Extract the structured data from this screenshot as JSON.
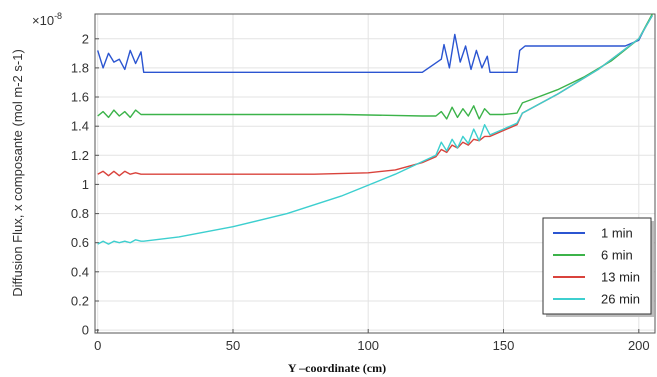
{
  "chart_data": {
    "type": "line",
    "title": "",
    "xlabel": "Y –coordinate (cm)",
    "ylabel": "Diffusion Flux, x composante (mol m-2 s-1)",
    "y_multiplier_label": "×10",
    "y_multiplier_exponent": "-8",
    "xlim": [
      -1,
      206
    ],
    "ylim": [
      -0.02,
      2.17
    ],
    "x_ticks": [
      0,
      50,
      100,
      150,
      200
    ],
    "y_ticks": [
      0,
      0.2,
      0.4,
      0.6,
      0.8,
      1,
      1.2,
      1.4,
      1.6,
      1.8,
      2
    ],
    "grid": true,
    "legend_position": "lower-right",
    "series": [
      {
        "name": "1 min",
        "color": "#2b55d1",
        "x": [
          0,
          2,
          4,
          6,
          8,
          10,
          12,
          14,
          16,
          17,
          30,
          60,
          90,
          120,
          127,
          128,
          130,
          132,
          134,
          136,
          138,
          140,
          142,
          144,
          145,
          150,
          155,
          156,
          158,
          170,
          185,
          195,
          200,
          203,
          205
        ],
        "values": [
          1.92,
          1.8,
          1.9,
          1.84,
          1.86,
          1.79,
          1.92,
          1.83,
          1.91,
          1.77,
          1.77,
          1.77,
          1.77,
          1.77,
          1.86,
          1.96,
          1.8,
          2.03,
          1.84,
          1.95,
          1.79,
          1.92,
          1.8,
          1.88,
          1.77,
          1.77,
          1.77,
          1.92,
          1.95,
          1.95,
          1.95,
          1.95,
          1.99,
          2.1,
          2.16
        ]
      },
      {
        "name": "6 min",
        "color": "#3cb34a",
        "x": [
          0,
          2,
          4,
          6,
          8,
          10,
          12,
          14,
          16,
          17,
          30,
          60,
          90,
          120,
          125,
          127,
          129,
          131,
          133,
          135,
          137,
          139,
          141,
          143,
          145,
          150,
          155,
          157,
          160,
          170,
          180,
          190,
          200,
          205
        ],
        "values": [
          1.47,
          1.5,
          1.46,
          1.51,
          1.47,
          1.5,
          1.46,
          1.51,
          1.48,
          1.48,
          1.48,
          1.48,
          1.48,
          1.47,
          1.47,
          1.5,
          1.45,
          1.53,
          1.46,
          1.52,
          1.47,
          1.54,
          1.45,
          1.52,
          1.48,
          1.48,
          1.49,
          1.56,
          1.58,
          1.65,
          1.74,
          1.85,
          2.0,
          2.17
        ]
      },
      {
        "name": "13 min",
        "color": "#d9433c",
        "x": [
          0,
          2,
          4,
          6,
          8,
          10,
          12,
          14,
          16,
          17,
          40,
          80,
          100,
          110,
          120,
          125,
          127,
          129,
          131,
          133,
          135,
          137,
          139,
          141,
          143,
          145,
          150,
          155,
          157,
          170,
          185,
          200,
          205
        ],
        "values": [
          1.07,
          1.09,
          1.06,
          1.09,
          1.06,
          1.09,
          1.07,
          1.08,
          1.07,
          1.07,
          1.07,
          1.07,
          1.08,
          1.1,
          1.15,
          1.19,
          1.24,
          1.22,
          1.27,
          1.25,
          1.29,
          1.27,
          1.31,
          1.3,
          1.33,
          1.33,
          1.37,
          1.41,
          1.49,
          1.62,
          1.79,
          2.0,
          2.16
        ]
      },
      {
        "name": "26 min",
        "color": "#3dcfcf",
        "x": [
          0,
          2,
          4,
          6,
          8,
          10,
          12,
          14,
          16,
          17,
          30,
          50,
          70,
          90,
          110,
          125,
          127,
          129,
          131,
          133,
          135,
          137,
          139,
          141,
          143,
          145,
          150,
          155,
          157,
          170,
          185,
          200,
          205
        ],
        "values": [
          0.59,
          0.61,
          0.59,
          0.61,
          0.6,
          0.61,
          0.6,
          0.62,
          0.61,
          0.61,
          0.64,
          0.71,
          0.8,
          0.92,
          1.07,
          1.2,
          1.29,
          1.23,
          1.31,
          1.25,
          1.33,
          1.28,
          1.38,
          1.3,
          1.41,
          1.34,
          1.38,
          1.42,
          1.49,
          1.62,
          1.79,
          2.0,
          2.16
        ]
      }
    ]
  }
}
